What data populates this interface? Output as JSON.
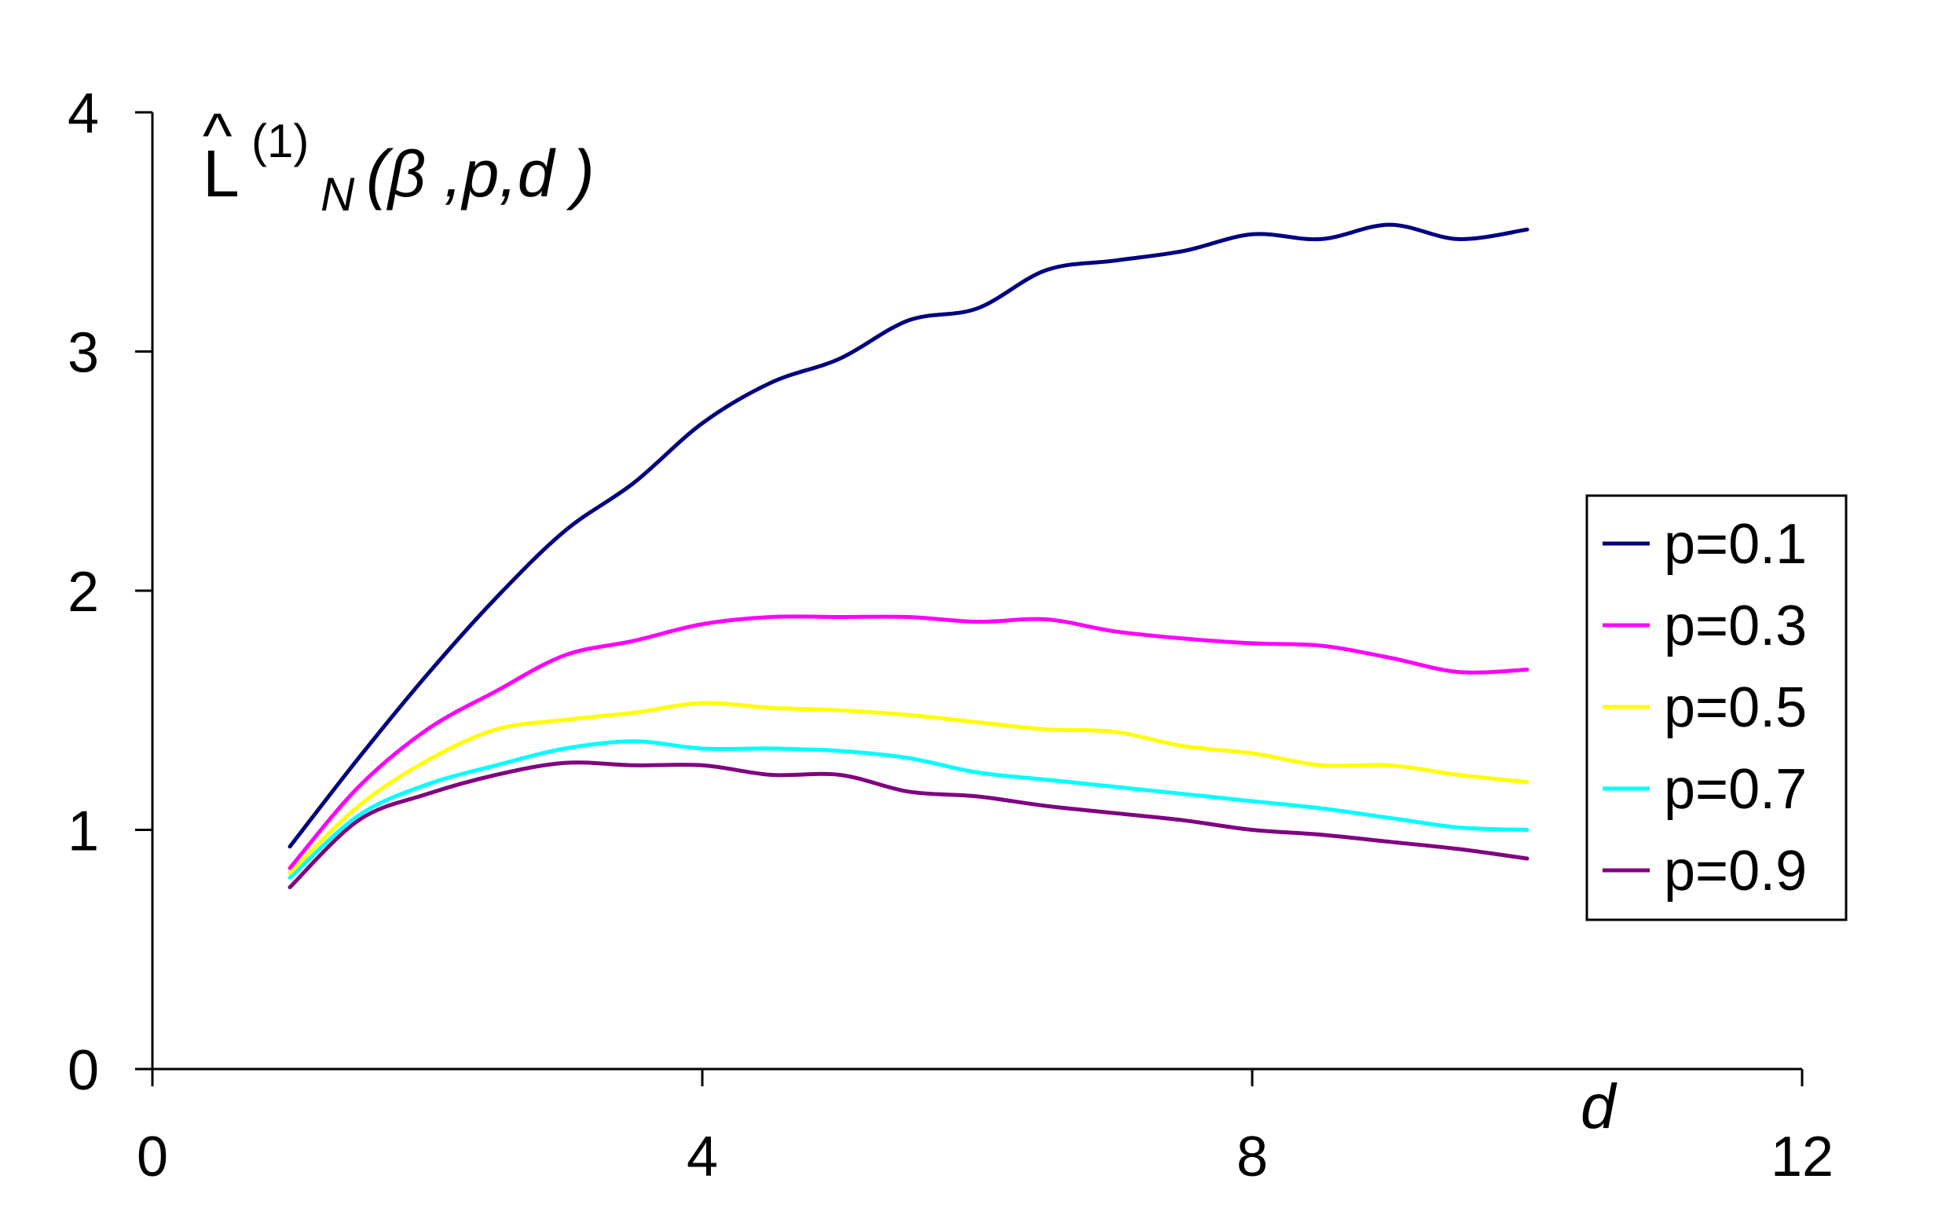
{
  "chart_data": {
    "type": "line",
    "ylabel": {
      "base": "L",
      "hat": "^",
      "superscript": "(1)",
      "subscript": "N",
      "args": "(β ,p,d )"
    },
    "xlabel": "d",
    "xlim": [
      0,
      12
    ],
    "ylim": [
      0,
      4
    ],
    "xticks": [
      0,
      4,
      8,
      12
    ],
    "yticks": [
      0,
      1,
      2,
      3,
      4
    ],
    "xtick_labels": [
      "0",
      "4",
      "8",
      "12"
    ],
    "ytick_labels": [
      "0",
      "1",
      "2",
      "3",
      "4"
    ],
    "grid": false,
    "legend_position": "right",
    "x": [
      1,
      1.5,
      2,
      2.5,
      3,
      3.5,
      4,
      4.5,
      5,
      5.5,
      6,
      6.5,
      7,
      7.5,
      8,
      8.5,
      9,
      9.5,
      10
    ],
    "series": [
      {
        "name": "p=0.1",
        "color": "#000080",
        "values": [
          0.93,
          1.3,
          1.65,
          1.97,
          2.25,
          2.45,
          2.7,
          2.87,
          2.97,
          3.13,
          3.18,
          3.34,
          3.38,
          3.42,
          3.49,
          3.47,
          3.53,
          3.47,
          3.51
        ]
      },
      {
        "name": "p=0.3",
        "color": "#ff00ff",
        "values": [
          0.84,
          1.18,
          1.42,
          1.58,
          1.73,
          1.79,
          1.86,
          1.89,
          1.89,
          1.89,
          1.87,
          1.88,
          1.83,
          1.8,
          1.78,
          1.77,
          1.72,
          1.66,
          1.67
        ]
      },
      {
        "name": "p=0.5",
        "color": "#ffff00",
        "values": [
          0.82,
          1.1,
          1.29,
          1.42,
          1.46,
          1.49,
          1.53,
          1.51,
          1.5,
          1.48,
          1.45,
          1.42,
          1.41,
          1.35,
          1.32,
          1.27,
          1.27,
          1.23,
          1.2
        ]
      },
      {
        "name": "p=0.7",
        "color": "#00ffff",
        "values": [
          0.8,
          1.06,
          1.19,
          1.27,
          1.34,
          1.37,
          1.34,
          1.34,
          1.33,
          1.3,
          1.24,
          1.21,
          1.18,
          1.15,
          1.12,
          1.09,
          1.05,
          1.01,
          1.0
        ]
      },
      {
        "name": "p=0.9",
        "color": "#800080",
        "values": [
          0.76,
          1.04,
          1.15,
          1.23,
          1.28,
          1.27,
          1.27,
          1.23,
          1.23,
          1.16,
          1.14,
          1.1,
          1.07,
          1.04,
          1.0,
          0.98,
          0.95,
          0.92,
          0.88
        ]
      }
    ]
  }
}
